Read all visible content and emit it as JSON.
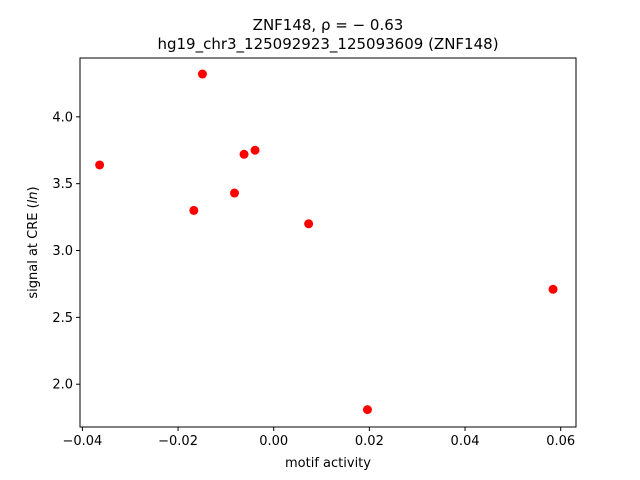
{
  "chart_data": {
    "type": "scatter",
    "title_line1": "ZNF148, ρ = − 0.63",
    "title_line2": "hg19_chr3_125092923_125093609 (ZNF148)",
    "xlabel": "motif activity",
    "ylabel_prefix": "signal at CRE (",
    "ylabel_italic": "ln",
    "ylabel_suffix": ")",
    "xlim": [
      -0.0405,
      0.0632
    ],
    "ylim": [
      1.68,
      4.44
    ],
    "x_ticks": [
      -0.04,
      -0.02,
      0.0,
      0.02,
      0.04,
      0.06
    ],
    "x_tick_labels": [
      "−0.04",
      "−0.02",
      "0.00",
      "0.02",
      "0.04",
      "0.06"
    ],
    "y_ticks": [
      2.0,
      2.5,
      3.0,
      3.5,
      4.0
    ],
    "y_tick_labels": [
      "2.0",
      "2.5",
      "3.0",
      "3.5",
      "4.0"
    ],
    "grid": false,
    "point_color": "#ff0000",
    "points": [
      {
        "x": -0.0364,
        "y": 3.64
      },
      {
        "x": -0.0149,
        "y": 4.32
      },
      {
        "x": -0.0167,
        "y": 3.3
      },
      {
        "x": -0.0082,
        "y": 3.43
      },
      {
        "x": -0.0062,
        "y": 3.72
      },
      {
        "x": -0.0039,
        "y": 3.75
      },
      {
        "x": 0.0073,
        "y": 3.2
      },
      {
        "x": 0.0196,
        "y": 1.81
      },
      {
        "x": 0.0584,
        "y": 2.71
      }
    ]
  }
}
